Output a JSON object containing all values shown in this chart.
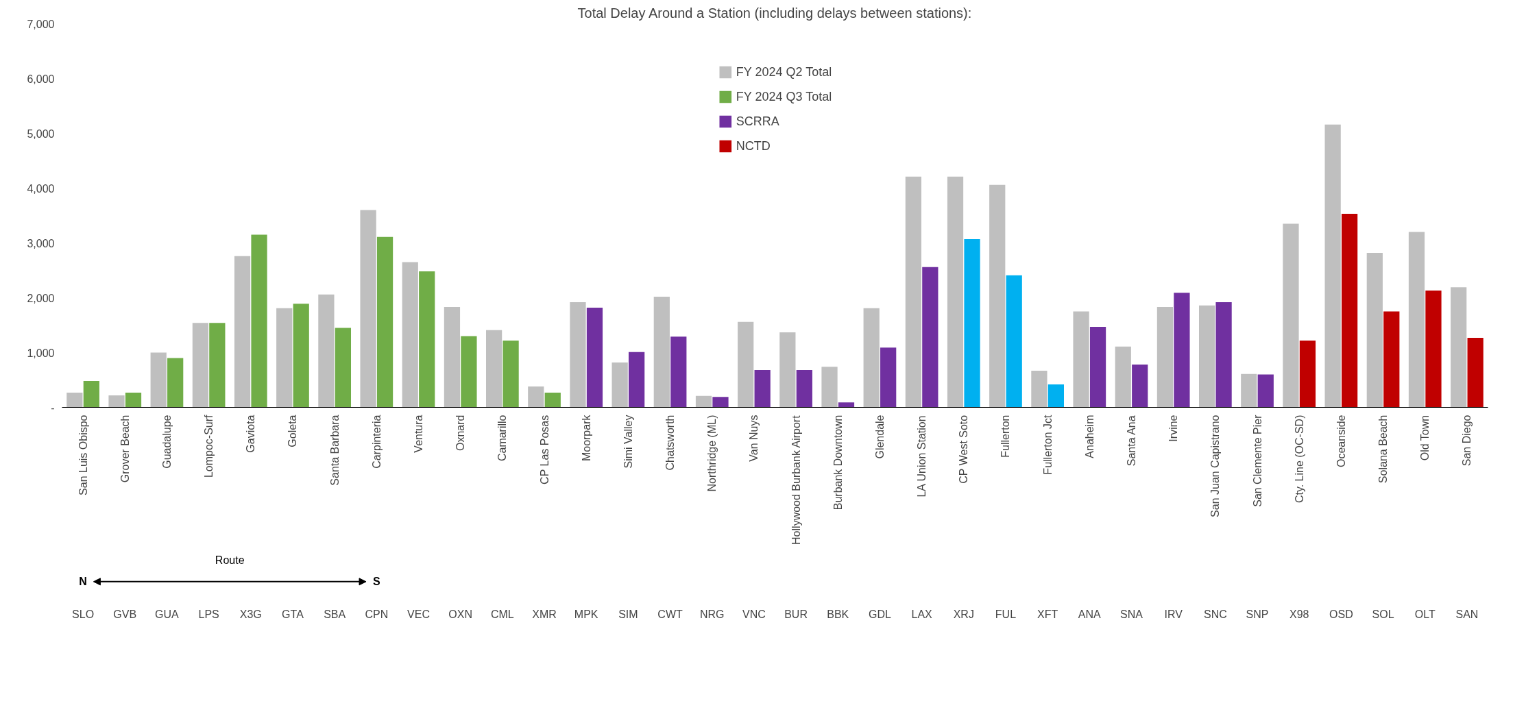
{
  "chart_data": {
    "type": "bar",
    "title": "Total Delay Around a Station (including delays between stations):",
    "categories": [
      "San Luis Obispo",
      "Grover Beach",
      "Guadalupe",
      "Lompoc-Surf",
      "Gaviota",
      "Goleta",
      "Santa Barbara",
      "Carpinteria",
      "Ventura",
      "Oxnard",
      "Camarillo",
      "CP Las Posas",
      "Moorpark",
      "Simi Valley",
      "Chatsworth",
      "Northridge (ML)",
      "Van Nuys",
      "Hollywood Burbank Airport",
      "Burbank Downtown",
      "Glendale",
      "LA Union Station",
      "CP West Soto",
      "Fullerton",
      "Fullerton Jct",
      "Anaheim",
      "Santa Ana",
      "Irvine",
      "San Juan Capistrano",
      "San Clemente Pier",
      "Cty. Line (OC-SD)",
      "Oceanside",
      "Solana Beach",
      "Old Town",
      "San Diego"
    ],
    "series": [
      {
        "name": "FY 2024 Q2 Total",
        "color": "#bfbfbf",
        "values": [
          270,
          220,
          1000,
          1540,
          2760,
          1810,
          2060,
          3600,
          2650,
          1830,
          1410,
          380,
          1920,
          820,
          2020,
          210,
          1560,
          1370,
          740,
          1810,
          4210,
          4210,
          4060,
          670,
          1750,
          1110,
          1830,
          1860,
          610,
          3350,
          5160,
          2820,
          3200,
          2190
        ]
      },
      {
        "name": "FY 2024 Q3 Total",
        "color": "#70ad47",
        "values": [
          480,
          270,
          900,
          1540,
          3150,
          1890,
          1450,
          3110,
          2480,
          1300,
          1220,
          270,
          1820,
          1010,
          1290,
          190,
          680,
          680,
          90,
          1090,
          2560,
          3070,
          2410,
          420,
          1470,
          780,
          2090,
          1920,
          600,
          1220,
          3530,
          1750,
          2130,
          1270
        ],
        "colors": [
          "#70ad47",
          "#70ad47",
          "#70ad47",
          "#70ad47",
          "#70ad47",
          "#70ad47",
          "#70ad47",
          "#70ad47",
          "#70ad47",
          "#70ad47",
          "#70ad47",
          "#70ad47",
          "#7030a0",
          "#7030a0",
          "#7030a0",
          "#7030a0",
          "#7030a0",
          "#7030a0",
          "#7030a0",
          "#7030a0",
          "#7030a0",
          "#00b0f0",
          "#00b0f0",
          "#00b0f0",
          "#7030a0",
          "#7030a0",
          "#7030a0",
          "#7030a0",
          "#7030a0",
          "#c00000",
          "#c00000",
          "#c00000",
          "#c00000",
          "#c00000"
        ]
      },
      {
        "name": "SCRRA",
        "color": "#7030a0",
        "values": [
          null,
          null,
          null,
          null,
          null,
          null,
          null,
          null,
          null,
          null,
          null,
          null,
          null,
          null,
          null,
          null,
          null,
          null,
          null,
          null,
          null,
          null,
          null,
          null,
          null,
          null,
          null,
          null,
          null,
          null,
          null,
          null,
          null,
          null
        ]
      },
      {
        "name": "NCTD",
        "color": "#c00000",
        "values": [
          null,
          null,
          null,
          null,
          null,
          null,
          null,
          null,
          null,
          null,
          null,
          null,
          null,
          null,
          null,
          null,
          null,
          null,
          null,
          null,
          null,
          null,
          null,
          null,
          null,
          null,
          null,
          null,
          null,
          null,
          null,
          null,
          null,
          null
        ]
      }
    ],
    "ylim": [
      0,
      7000
    ],
    "yticks": [
      {
        "value": 0,
        "label": "-"
      },
      {
        "value": 1000,
        "label": "1,000"
      },
      {
        "value": 2000,
        "label": "2,000"
      },
      {
        "value": 3000,
        "label": "3,000"
      },
      {
        "value": 4000,
        "label": "4,000"
      },
      {
        "value": 5000,
        "label": "5,000"
      },
      {
        "value": 6000,
        "label": "6,000"
      },
      {
        "value": 7000,
        "label": "7,000"
      }
    ],
    "grid": false,
    "legend": "top",
    "annotations": [
      "N",
      "Route",
      "S",
      "SLO",
      "GVB",
      "GUA",
      "LPS",
      "X3G",
      "GTA",
      "SBA",
      "CPN",
      "VEC",
      "OXN",
      "CML",
      "XMR",
      "MPK",
      "SIM",
      "CWT",
      "NRG",
      "VNC",
      "BUR",
      "BBK",
      "GDL",
      "LAX",
      "XRJ",
      "FUL",
      "XFT",
      "ANA",
      "SNA",
      "IRV",
      "SNC",
      "SNP",
      "X98",
      "OSD",
      "SOL",
      "OLT",
      "SAN"
    ]
  }
}
